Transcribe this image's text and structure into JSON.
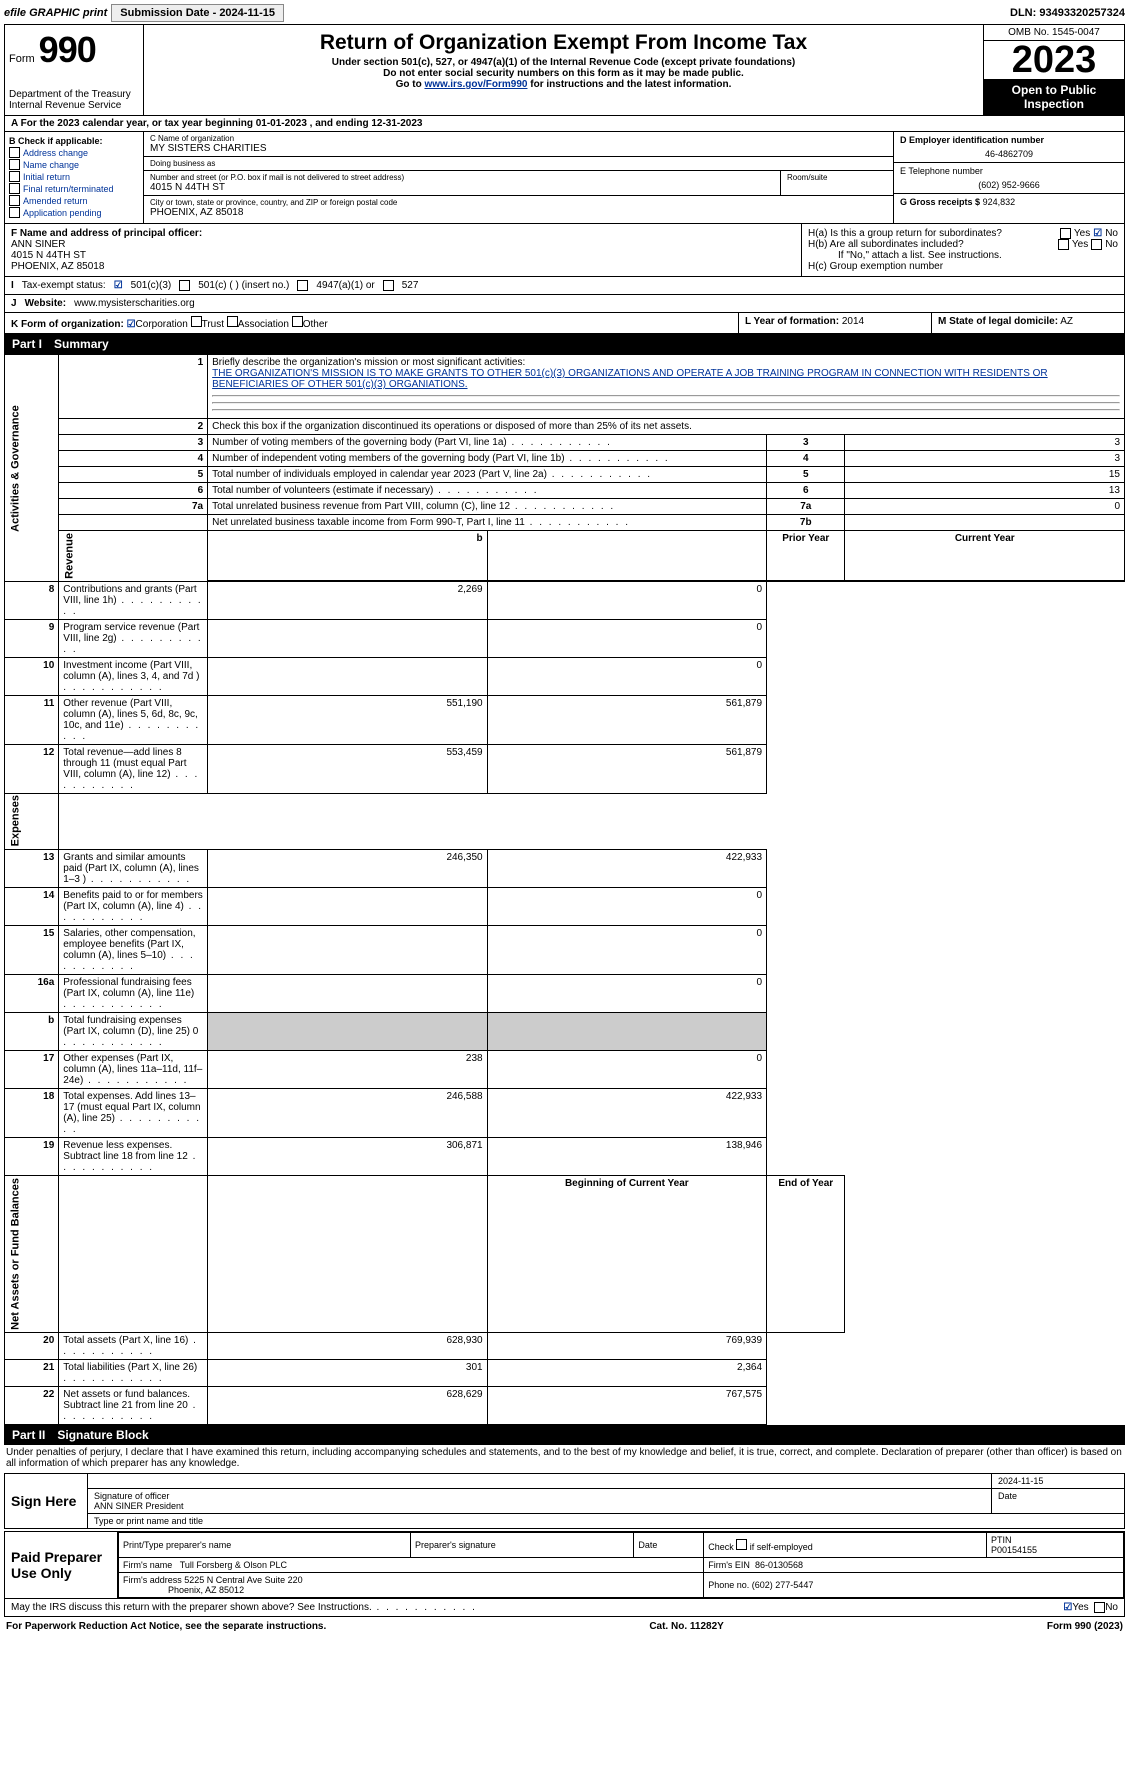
{
  "top": {
    "efile": "efile GRAPHIC print",
    "sub_label": "Submission Date - 2024-11-15",
    "dln": "DLN: 93493320257324"
  },
  "header": {
    "form_word": "Form",
    "form_num": "990",
    "dept": "Department of the Treasury Internal Revenue Service",
    "title": "Return of Organization Exempt From Income Tax",
    "sub1": "Under section 501(c), 527, or 4947(a)(1) of the Internal Revenue Code (except private foundations)",
    "sub2": "Do not enter social security numbers on this form as it may be made public.",
    "sub3_pre": "Go to ",
    "sub3_link": "www.irs.gov/Form990",
    "sub3_post": " for instructions and the latest information.",
    "omb": "OMB No. 1545-0047",
    "year": "2023",
    "open": "Open to Public Inspection"
  },
  "a_line": "For the 2023 calendar year, or tax year beginning 01-01-2023   , and ending 12-31-2023",
  "b": {
    "header": "B Check if applicable:",
    "items": [
      "Address change",
      "Name change",
      "Initial return",
      "Final return/terminated",
      "Amended return",
      "Application pending"
    ]
  },
  "c": {
    "name_label": "C Name of organization",
    "name": "MY SISTERS CHARITIES",
    "dba_label": "Doing business as",
    "dba": "",
    "street_label": "Number and street (or P.O. box if mail is not delivered to street address)",
    "street": "4015 N 44TH ST",
    "room_label": "Room/suite",
    "city_label": "City or town, state or province, country, and ZIP or foreign postal code",
    "city": "PHOENIX, AZ  85018"
  },
  "d": {
    "ein_label": "D Employer identification number",
    "ein": "46-4862709",
    "tel_label": "E Telephone number",
    "tel": "(602) 952-9666",
    "gross_label": "G Gross receipts $",
    "gross": "924,832"
  },
  "f": {
    "label": "F  Name and address of principal officer:",
    "name": "ANN SINER",
    "street": "4015 N 44TH ST",
    "city": "PHOENIX, AZ  85018"
  },
  "h": {
    "a": "H(a)  Is this a group return for subordinates?",
    "b": "H(b)  Are all subordinates included?",
    "b_note": "If \"No,\" attach a list. See instructions.",
    "c": "H(c)  Group exemption number"
  },
  "i": {
    "label": "Tax-exempt status:",
    "opts": [
      "501(c)(3)",
      "501(c) (  ) (insert no.)",
      "4947(a)(1) or",
      "527"
    ]
  },
  "j": {
    "label": "Website:",
    "val": "www.mysisterscharities.org"
  },
  "k": {
    "label": "K Form of organization:",
    "opts": [
      "Corporation",
      "Trust",
      "Association",
      "Other"
    ]
  },
  "l": {
    "label": "L Year of formation:",
    "val": "2014"
  },
  "m": {
    "label": "M State of legal domicile:",
    "val": "AZ"
  },
  "part1": {
    "num": "Part I",
    "title": "Summary"
  },
  "mission": {
    "label": "Briefly describe the organization's mission or most significant activities:",
    "text": "THE ORGANIZATION'S MISSION IS TO MAKE GRANTS TO OTHER 501(c)(3) ORGANIZATIONS AND OPERATE A JOB TRAINING PROGRAM IN CONNECTION WITH RESIDENTS OR BENEFICIARIES OF OTHER 501(c)(3) ORGANIATIONS."
  },
  "line2": "Check this box      if the organization discontinued its operations or disposed of more than 25% of its net assets.",
  "sections": {
    "gov": "Activities & Governance",
    "rev": "Revenue",
    "exp": "Expenses",
    "net": "Net Assets or Fund Balances"
  },
  "gov_lines": [
    {
      "n": "3",
      "d": "Number of voting members of the governing body (Part VI, line 1a)",
      "box": "3",
      "v": "3"
    },
    {
      "n": "4",
      "d": "Number of independent voting members of the governing body (Part VI, line 1b)",
      "box": "4",
      "v": "3"
    },
    {
      "n": "5",
      "d": "Total number of individuals employed in calendar year 2023 (Part V, line 2a)",
      "box": "5",
      "v": "15"
    },
    {
      "n": "6",
      "d": "Total number of volunteers (estimate if necessary)",
      "box": "6",
      "v": "13"
    },
    {
      "n": "7a",
      "d": "Total unrelated business revenue from Part VIII, column (C), line 12",
      "box": "7a",
      "v": "0"
    },
    {
      "n": "",
      "d": "Net unrelated business taxable income from Form 990-T, Part I, line 11",
      "box": "7b",
      "v": ""
    }
  ],
  "col_hdrs": {
    "b": "b",
    "py": "Prior Year",
    "cy": "Current Year"
  },
  "rev_lines": [
    {
      "n": "8",
      "d": "Contributions and grants (Part VIII, line 1h)",
      "py": "2,269",
      "cy": "0"
    },
    {
      "n": "9",
      "d": "Program service revenue (Part VIII, line 2g)",
      "py": "",
      "cy": "0"
    },
    {
      "n": "10",
      "d": "Investment income (Part VIII, column (A), lines 3, 4, and 7d )",
      "py": "",
      "cy": "0"
    },
    {
      "n": "11",
      "d": "Other revenue (Part VIII, column (A), lines 5, 6d, 8c, 9c, 10c, and 11e)",
      "py": "551,190",
      "cy": "561,879"
    },
    {
      "n": "12",
      "d": "Total revenue—add lines 8 through 11 (must equal Part VIII, column (A), line 12)",
      "py": "553,459",
      "cy": "561,879"
    }
  ],
  "exp_lines": [
    {
      "n": "13",
      "d": "Grants and similar amounts paid (Part IX, column (A), lines 1–3 )",
      "py": "246,350",
      "cy": "422,933"
    },
    {
      "n": "14",
      "d": "Benefits paid to or for members (Part IX, column (A), line 4)",
      "py": "",
      "cy": "0"
    },
    {
      "n": "15",
      "d": "Salaries, other compensation, employee benefits (Part IX, column (A), lines 5–10)",
      "py": "",
      "cy": "0"
    },
    {
      "n": "16a",
      "d": "Professional fundraising fees (Part IX, column (A), line 11e)",
      "py": "",
      "cy": "0"
    },
    {
      "n": "b",
      "d": "Total fundraising expenses (Part IX, column (D), line 25) 0",
      "py": "SHADE",
      "cy": "SHADE"
    },
    {
      "n": "17",
      "d": "Other expenses (Part IX, column (A), lines 11a–11d, 11f–24e)",
      "py": "238",
      "cy": "0"
    },
    {
      "n": "18",
      "d": "Total expenses. Add lines 13–17 (must equal Part IX, column (A), line 25)",
      "py": "246,588",
      "cy": "422,933"
    },
    {
      "n": "19",
      "d": "Revenue less expenses. Subtract line 18 from line 12",
      "py": "306,871",
      "cy": "138,946"
    }
  ],
  "net_hdrs": {
    "py": "Beginning of Current Year",
    "cy": "End of Year"
  },
  "net_lines": [
    {
      "n": "20",
      "d": "Total assets (Part X, line 16)",
      "py": "628,930",
      "cy": "769,939"
    },
    {
      "n": "21",
      "d": "Total liabilities (Part X, line 26)",
      "py": "301",
      "cy": "2,364"
    },
    {
      "n": "22",
      "d": "Net assets or fund balances. Subtract line 21 from line 20",
      "py": "628,629",
      "cy": "767,575"
    }
  ],
  "part2": {
    "num": "Part II",
    "title": "Signature Block"
  },
  "perjury": "Under penalties of perjury, I declare that I have examined this return, including accompanying schedules and statements, and to the best of my knowledge and belief, it is true, correct, and complete. Declaration of preparer (other than officer) is based on all information of which preparer has any knowledge.",
  "sign": {
    "here": "Sign Here",
    "date": "2024-11-15",
    "sig_label": "Signature of officer",
    "officer": "ANN SINER  President",
    "type_label": "Type or print name and title",
    "date_label": "Date"
  },
  "paid": {
    "label": "Paid Preparer Use Only",
    "h1": "Print/Type preparer's name",
    "h2": "Preparer's signature",
    "h3": "Date",
    "h4_pre": "Check",
    "h4_post": "if self-employed",
    "h5": "PTIN",
    "ptin": "P00154155",
    "firm_name_label": "Firm's name",
    "firm_name": "Tull Forsberg & Olson PLC",
    "firm_ein_label": "Firm's EIN",
    "firm_ein": "86-0130568",
    "firm_addr_label": "Firm's address",
    "firm_addr1": "5225 N Central Ave Suite 220",
    "firm_addr2": "Phoenix, AZ  85012",
    "phone_label": "Phone no.",
    "phone": "(602) 277-5447"
  },
  "discuss": "May the IRS discuss this return with the preparer shown above? See Instructions.",
  "footer": {
    "l": "For Paperwork Reduction Act Notice, see the separate instructions.",
    "c": "Cat. No. 11282Y",
    "r": "Form 990 (2023)"
  },
  "yes": "Yes",
  "no": "No"
}
